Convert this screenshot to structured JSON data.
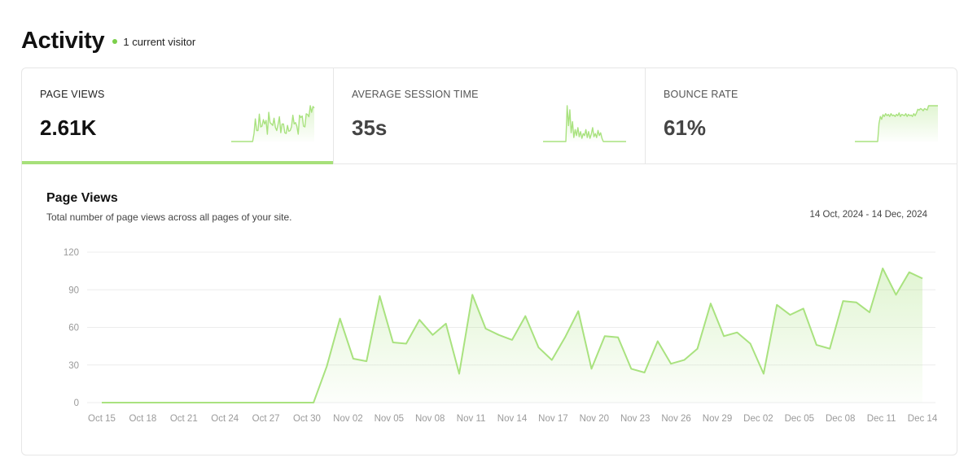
{
  "header": {
    "title": "Activity",
    "visitor_text": "1 current visitor"
  },
  "kpis": [
    {
      "label": "PAGE VIEWS",
      "value": "2.61K",
      "active": true
    },
    {
      "label": "AVERAGE SESSION TIME",
      "value": "35s",
      "active": false
    },
    {
      "label": "BOUNCE RATE",
      "value": "61%",
      "active": false
    }
  ],
  "chart_panel": {
    "title": "Page Views",
    "subtitle": "Total number of page views across all pages of your site.",
    "date_range": "14 Oct, 2024 - 14 Dec, 2024"
  },
  "colors": {
    "accent": "#a7e07a",
    "line": "#a9e27f",
    "visitor_dot": "#7bcf4a",
    "grid": "#ececec"
  },
  "chart_data": {
    "type": "area",
    "ylim": [
      0,
      120
    ],
    "yticks": [
      0,
      30,
      60,
      90,
      120
    ],
    "xlabels": [
      "Oct 15",
      "Oct 18",
      "Oct 21",
      "Oct 24",
      "Oct 27",
      "Oct 30",
      "Nov 02",
      "Nov 05",
      "Nov 08",
      "Nov 11",
      "Nov 14",
      "Nov 17",
      "Nov 20",
      "Nov 23",
      "Nov 26",
      "Nov 29",
      "Dec 02",
      "Dec 05",
      "Dec 08",
      "Dec 11",
      "Dec 14"
    ],
    "series": [
      {
        "values": [
          0,
          0,
          0,
          0,
          0,
          0,
          0,
          0,
          0,
          0,
          0,
          0,
          0,
          0,
          0,
          0,
          0,
          29,
          67,
          35,
          33,
          85,
          48,
          47,
          66,
          54,
          63,
          23,
          86,
          59,
          54,
          50,
          69,
          44,
          34,
          52,
          73,
          27,
          53,
          52,
          27,
          24,
          49,
          31,
          34,
          43,
          79,
          53,
          56,
          47,
          23,
          78,
          70,
          75,
          46,
          43,
          81,
          80,
          72,
          107,
          86,
          104,
          99
        ]
      }
    ]
  },
  "sparklines": {
    "page_views": [
      0,
      0,
      0,
      0,
      0,
      0,
      0,
      0,
      0,
      0,
      0,
      0,
      0,
      0,
      0,
      0,
      0,
      22,
      62,
      30,
      30,
      75,
      40,
      42,
      60,
      48,
      58,
      20,
      80,
      52,
      48,
      44,
      64,
      38,
      30,
      48,
      68,
      24,
      48,
      48,
      24,
      22,
      44,
      28,
      30,
      40,
      72,
      48,
      52,
      42,
      20,
      72,
      66,
      70,
      42,
      40,
      76,
      74,
      68,
      98,
      80,
      96,
      92
    ],
    "session_time": [
      0,
      0,
      0,
      0,
      0,
      0,
      0,
      0,
      0,
      0,
      0,
      0,
      0,
      0,
      0,
      0,
      0,
      0,
      90,
      40,
      80,
      22,
      50,
      10,
      30,
      15,
      35,
      12,
      25,
      8,
      20,
      15,
      30,
      10,
      25,
      8,
      18,
      35,
      12,
      20,
      10,
      28,
      15,
      22,
      8,
      0,
      0,
      0,
      0,
      0,
      0,
      0,
      0,
      0,
      0,
      0,
      0,
      0,
      0,
      0,
      0,
      0,
      0
    ],
    "bounce_rate": [
      0,
      0,
      0,
      0,
      0,
      0,
      0,
      0,
      0,
      0,
      0,
      0,
      0,
      0,
      0,
      0,
      0,
      0,
      50,
      70,
      62,
      75,
      70,
      78,
      72,
      76,
      70,
      78,
      72,
      74,
      70,
      76,
      72,
      80,
      70,
      76,
      74,
      72,
      78,
      70,
      76,
      72,
      74,
      70,
      78,
      72,
      80,
      90,
      88,
      92,
      90,
      86,
      92,
      90,
      88,
      100,
      100,
      100,
      100,
      100,
      100,
      100,
      100
    ]
  }
}
